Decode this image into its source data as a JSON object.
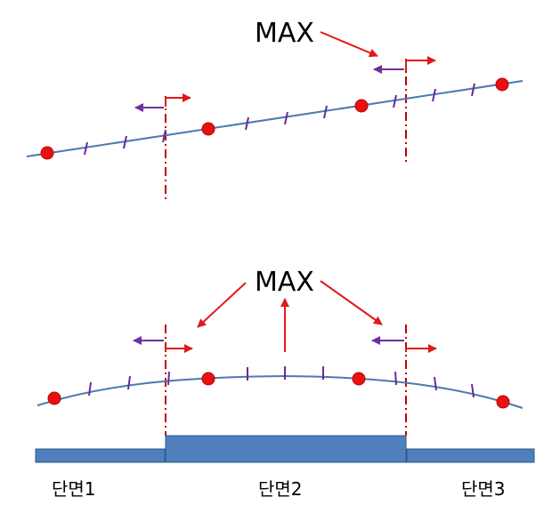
{
  "colors": {
    "background": "#ffffff",
    "curve": "#4a7ab0",
    "point": "#e81010",
    "point_stroke": "#c00000",
    "tick": "#6a2a9a",
    "red_arrow": "#e0191b",
    "purple_arrow": "#7030a0",
    "divider": "#c00000",
    "section_fill": "#4f7fbd",
    "section_stroke": "#2e5a8a"
  },
  "top_diagram": {
    "max_label": "MAX"
  },
  "bottom_diagram": {
    "max_label": "MAX"
  },
  "sections": {
    "left_label": "단면1",
    "middle_label": "단면2",
    "right_label": "단면3"
  }
}
